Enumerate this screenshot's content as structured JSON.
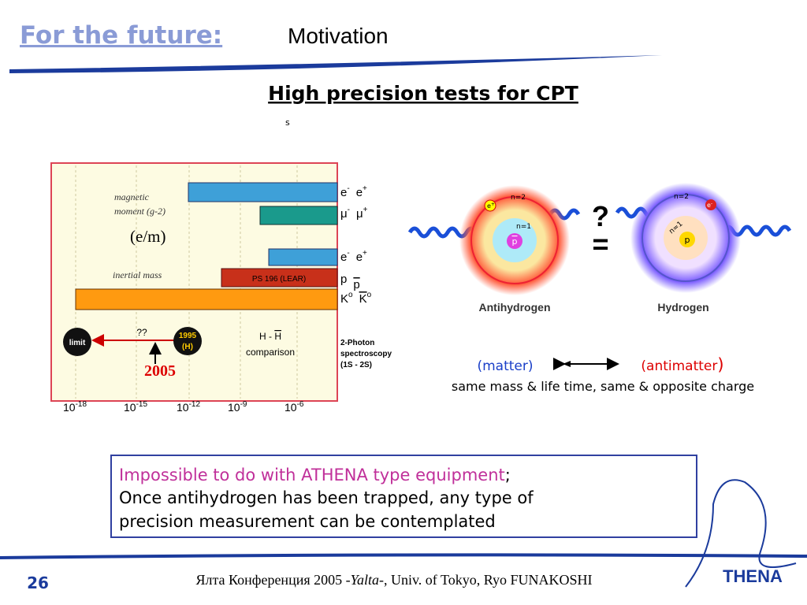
{
  "header": {
    "title_lead": "For the future:",
    "title_rest": "Motivation"
  },
  "heading": "High precision tests for CPT ",
  "stray_mark": "s",
  "figure": {
    "labels": {
      "magnetic_1": "magnetic",
      "magnetic_2": "moment (g-2)",
      "em": "(e/m)",
      "inertial": "inertial mass",
      "lear": "PS 196 (LEAR)",
      "limit": "limit",
      "unknown": "??",
      "year1995": "1995",
      "h": "(H)",
      "hh_1": "H - ",
      "hh_bar": "H",
      "hh_2": "comparison",
      "photon_1": "2-Photon",
      "photon_2": "spectroscopy",
      "photon_3": "(1S - 2S)",
      "year2005": "2005"
    },
    "particles": [
      [
        "e",
        "-",
        "e",
        "+"
      ],
      [
        "μ",
        "-",
        "μ",
        "+"
      ],
      [
        "e",
        "-",
        "e",
        "+"
      ],
      [
        "p",
        "",
        "p",
        ""
      ],
      [
        "K",
        "o",
        "K",
        "o"
      ]
    ],
    "ticks": [
      {
        "base": "10",
        "exp": "-18"
      },
      {
        "base": "10",
        "exp": "-15"
      },
      {
        "base": "10",
        "exp": "-12"
      },
      {
        "base": "10",
        "exp": "-9"
      },
      {
        "base": "10",
        "exp": "-6"
      }
    ]
  },
  "atoms": {
    "question": "?",
    "equals": "=",
    "anti": {
      "name": "Antihydrogen",
      "n2": "n=2",
      "n1": "n=1",
      "lepton": "e",
      "lepton_sign": "+",
      "nucleus": "p"
    },
    "normal": {
      "name": "Hydrogen",
      "n2": "n=2",
      "n1": "n=1",
      "lepton": "e",
      "lepton_sign": "-",
      "nucleus": "p"
    },
    "matter": "(matter)",
    "antimatter": "(antimatter",
    "antimatter_close": ")",
    "caption": "same mass & life time, same & opposite charge"
  },
  "note": {
    "highlight": "Impossible to do with ATHENA type equipment",
    "semicolon": ";",
    "line2": "Once antihydrogen has been trapped, any type of",
    "line3": "precision measurement can be contemplated"
  },
  "footer": {
    "page": "26",
    "text_1": "Ялта Конференция 2005 -",
    "text_italic": "Yalta",
    "text_2": "-, Univ. of Tokyo,  Ryo FUNAKOSHI",
    "logo": "THENA"
  }
}
